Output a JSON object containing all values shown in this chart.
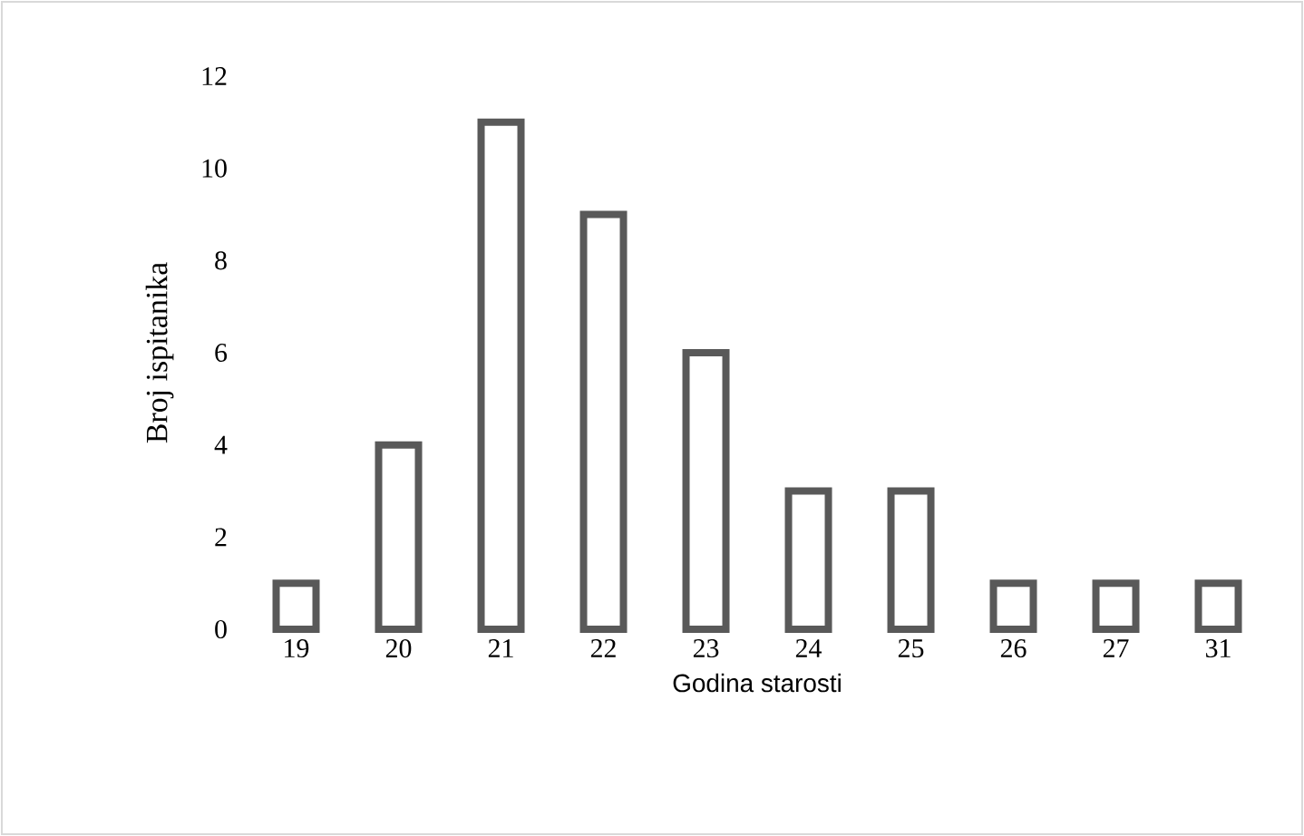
{
  "chart_data": {
    "type": "bar",
    "xlabel": "Godina starosti",
    "ylabel": "Broj ispitanika",
    "categories": [
      "19",
      "20",
      "21",
      "22",
      "23",
      "24",
      "25",
      "26",
      "27",
      "31"
    ],
    "values": [
      1,
      4,
      11,
      9,
      6,
      3,
      3,
      1,
      1,
      1
    ],
    "color": "#595959",
    "ylim": [
      0,
      12
    ],
    "yticks": [
      0,
      2,
      4,
      6,
      8,
      10,
      12
    ],
    "grid": false
  }
}
